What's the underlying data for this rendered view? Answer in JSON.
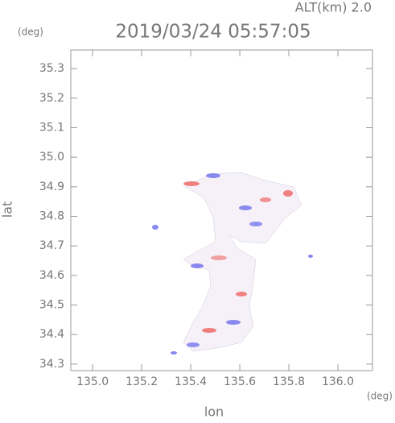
{
  "chart_data": {
    "type": "map",
    "title": "2019/03/24 05:57:05",
    "subtitle": "ALT(km) 2.0",
    "x_label": "lon",
    "y_label": "lat",
    "x_unit": "(deg)",
    "y_unit": "(deg)",
    "xlim": [
      134.911,
      136.141
    ],
    "ylim": [
      34.278,
      35.363
    ],
    "xticks": [
      {
        "value": 135.0,
        "label": "135.0"
      },
      135.2,
      135.4,
      135.6,
      135.8,
      {
        "value": 136.0,
        "label": "136.0"
      }
    ],
    "yticks": [
      34.3,
      34.4,
      34.5,
      34.6,
      34.7,
      34.8,
      34.9,
      {
        "value": 35.0,
        "label": "35.0"
      },
      35.1,
      35.2,
      35.3
    ]
  }
}
